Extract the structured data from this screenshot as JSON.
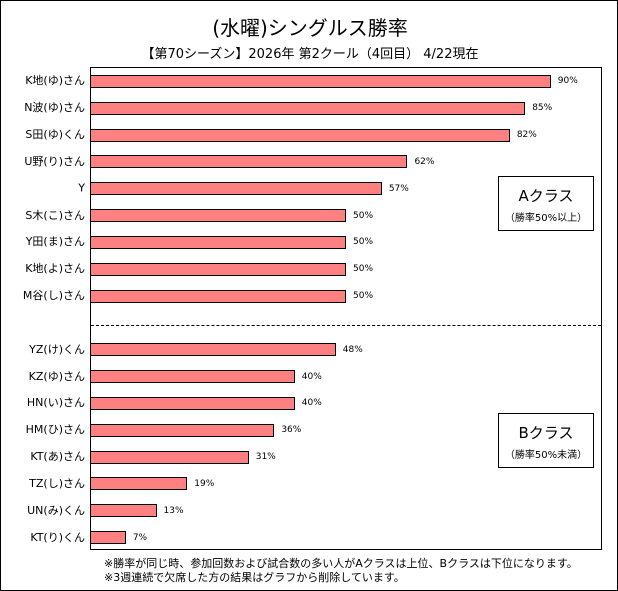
{
  "chart_data": {
    "type": "bar",
    "orientation": "horizontal",
    "title": "(水曜)シングルス勝率",
    "subtitle": "【第70シーズン】2026年 第2クール（4回目） 4/22現在",
    "xlim": [
      0,
      100
    ],
    "unit": "%",
    "groups": [
      {
        "legend_title": "Aクラス",
        "legend_sub": "（勝率50%以上）",
        "categories": [
          "K地(ゆ)さん",
          "N波(ゆ)さん",
          "S田(ゆ)くん",
          "U野(り)さん",
          "Y",
          "S木(こ)さん",
          "Y田(ま)さん",
          "K地(よ)さん",
          "M谷(し)さん"
        ],
        "values": [
          90,
          85,
          82,
          62,
          57,
          50,
          50,
          50,
          50
        ]
      },
      {
        "legend_title": "Bクラス",
        "legend_sub": "（勝率50%未満）",
        "categories": [
          "YZ(け)くん",
          "KZ(ゆ)さん",
          "HN(い)さん",
          "HM(ひ)さん",
          "KT(あ)さん",
          "TZ(し)さん",
          "UN(み)くん",
          "KT(り)くん"
        ],
        "values": [
          48,
          40,
          40,
          36,
          31,
          19,
          13,
          7
        ]
      }
    ],
    "bar_color": "#ff8080"
  },
  "notes": [
    "※勝率が同じ時、参加回数および試合数の多い人がAクラスは上位、Bクラスは下位になります。",
    "※3週連続で欠席した方の結果はグラフから削除しています。"
  ]
}
